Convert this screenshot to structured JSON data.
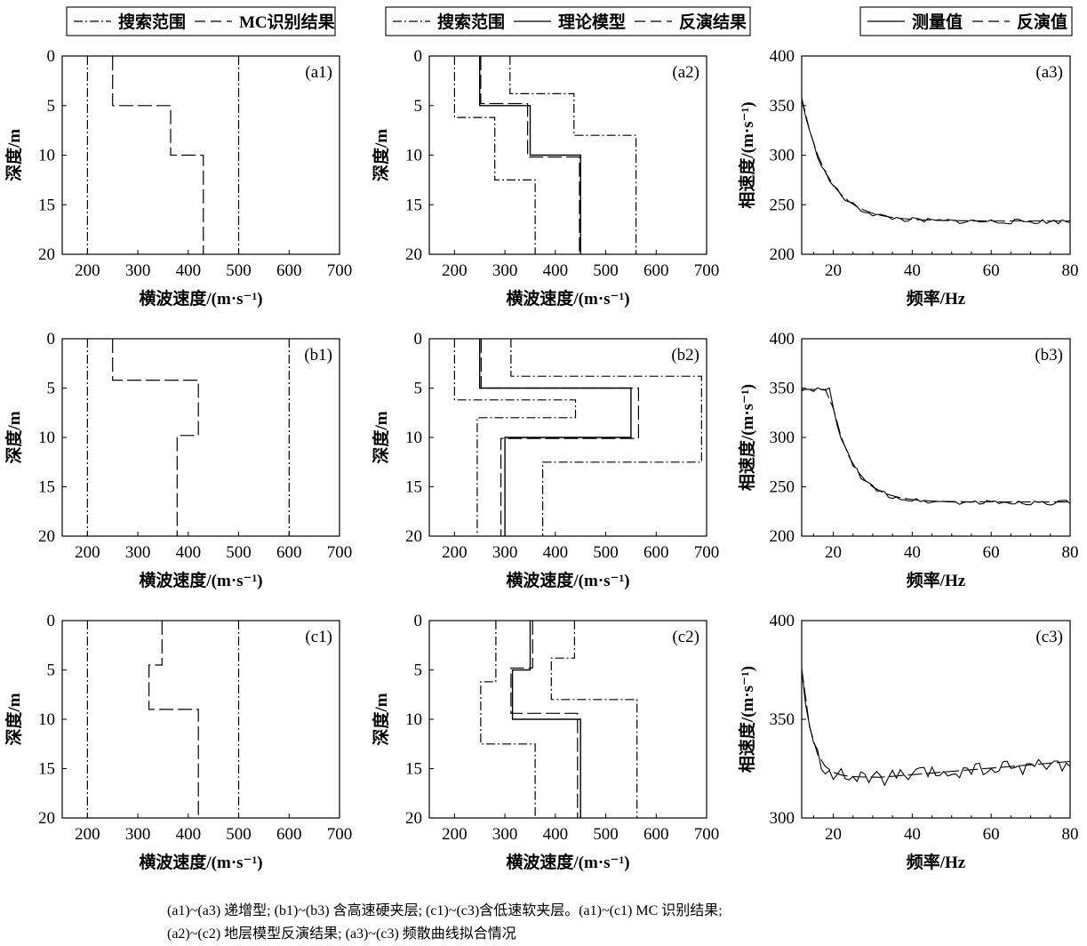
{
  "chart_data": [
    {
      "id": "a1",
      "type": "line",
      "panel_label": "(a1)",
      "xlabel": "横波速度/(m·s⁻¹)",
      "ylabel": "深度/m",
      "xlim": [
        150,
        700
      ],
      "ylim": [
        20,
        0
      ],
      "y_inverted": true,
      "xticks": [
        "200",
        "300",
        "400",
        "500",
        "600",
        "700"
      ],
      "yticks": [
        "0",
        "5",
        "10",
        "15",
        "20"
      ],
      "legend": [
        "搜索范围",
        "MC识别结果"
      ],
      "series": [
        {
          "name": "搜索范围",
          "style": "dashdot",
          "x": [
            200,
            200
          ],
          "y": [
            0,
            20
          ]
        },
        {
          "name": "搜索范围",
          "style": "dashdot",
          "x": [
            500,
            500
          ],
          "y": [
            0,
            20
          ]
        },
        {
          "name": "MC识别结果",
          "style": "dashed",
          "x": [
            250,
            250,
            365,
            365,
            430,
            430
          ],
          "y": [
            0,
            5,
            5,
            10,
            10,
            20
          ]
        }
      ]
    },
    {
      "id": "a2",
      "type": "line",
      "panel_label": "(a2)",
      "xlabel": "横波速度/(m·s⁻¹)",
      "ylabel": "深度/m",
      "xlim": [
        150,
        700
      ],
      "ylim": [
        20,
        0
      ],
      "y_inverted": true,
      "xticks": [
        "200",
        "300",
        "400",
        "500",
        "600",
        "700"
      ],
      "yticks": [
        "0",
        "5",
        "10",
        "15",
        "20"
      ],
      "legend": [
        "搜索范围",
        "理论模型",
        "反演结果"
      ],
      "series": [
        {
          "name": "搜索范围",
          "style": "dashdot",
          "x": [
            200,
            200,
            280,
            280,
            360,
            360
          ],
          "y": [
            0,
            6.2,
            6.2,
            12.5,
            12.5,
            20
          ]
        },
        {
          "name": "搜索范围",
          "style": "dashdot",
          "x": [
            310,
            310,
            437,
            437,
            560,
            560
          ],
          "y": [
            0,
            3.8,
            3.8,
            8,
            8,
            20
          ]
        },
        {
          "name": "理论模型",
          "style": "solid",
          "x": [
            250,
            250,
            350,
            350,
            450,
            450
          ],
          "y": [
            0,
            5,
            5,
            10,
            10,
            20
          ]
        },
        {
          "name": "反演结果",
          "style": "dashed",
          "x": [
            252,
            252,
            345,
            345,
            448,
            448
          ],
          "y": [
            0,
            4.8,
            4.8,
            10.2,
            10.2,
            20
          ]
        }
      ]
    },
    {
      "id": "a3",
      "type": "line",
      "panel_label": "(a3)",
      "xlabel": "频率/Hz",
      "ylabel": "相速度/(m·s⁻¹)",
      "xlim": [
        12,
        80
      ],
      "ylim": [
        200,
        400
      ],
      "xticks": [
        "20",
        "40",
        "60",
        "80"
      ],
      "yticks": [
        "200",
        "250",
        "300",
        "350",
        "400"
      ],
      "legend": [
        "测量值",
        "反演值"
      ],
      "curve": {
        "start": 357,
        "end": 233,
        "tau": 6.5,
        "start_freq": 12,
        "ripple": 2.5
      },
      "series": [
        {
          "name": "测量值",
          "style": "solid",
          "x": [
            12,
            15,
            20,
            25,
            30,
            40,
            50,
            60,
            70,
            80
          ],
          "y": [
            357,
            325,
            284,
            259,
            247,
            237,
            235,
            233,
            233,
            233
          ]
        },
        {
          "name": "反演值",
          "style": "dashed",
          "x": [
            12,
            15,
            20,
            25,
            30,
            40,
            50,
            60,
            70,
            80
          ],
          "y": [
            357,
            325,
            284,
            259,
            247,
            237,
            235,
            233,
            233,
            233
          ]
        }
      ]
    },
    {
      "id": "b1",
      "type": "line",
      "panel_label": "(b1)",
      "xlabel": "横波速度/(m·s⁻¹)",
      "ylabel": "深度/m",
      "xlim": [
        150,
        700
      ],
      "ylim": [
        20,
        0
      ],
      "y_inverted": true,
      "xticks": [
        "200",
        "300",
        "400",
        "500",
        "600",
        "700"
      ],
      "yticks": [
        "0",
        "5",
        "10",
        "15",
        "20"
      ],
      "series": [
        {
          "name": "搜索范围",
          "style": "dashdot",
          "x": [
            200,
            200
          ],
          "y": [
            0,
            20
          ]
        },
        {
          "name": "搜索范围",
          "style": "dashdot",
          "x": [
            600,
            600
          ],
          "y": [
            0,
            20
          ]
        },
        {
          "name": "MC识别结果",
          "style": "dashed",
          "x": [
            250,
            250,
            420,
            420,
            378,
            378
          ],
          "y": [
            0,
            4.2,
            4.2,
            9.8,
            9.8,
            20
          ]
        }
      ]
    },
    {
      "id": "b2",
      "type": "line",
      "panel_label": "(b2)",
      "xlabel": "横波速度/(m·s⁻¹)",
      "ylabel": "深度/m",
      "xlim": [
        150,
        700
      ],
      "ylim": [
        20,
        0
      ],
      "y_inverted": true,
      "xticks": [
        "200",
        "300",
        "400",
        "500",
        "600",
        "700"
      ],
      "yticks": [
        "0",
        "5",
        "10",
        "15",
        "20"
      ],
      "series": [
        {
          "name": "搜索范围",
          "style": "dashdot",
          "x": [
            200,
            200,
            440,
            440,
            245,
            245
          ],
          "y": [
            0,
            6.2,
            6.2,
            8,
            8,
            20
          ]
        },
        {
          "name": "搜索范围",
          "style": "dashdot",
          "x": [
            312,
            312,
            690,
            690,
            375,
            375
          ],
          "y": [
            0,
            3.8,
            3.8,
            12.5,
            12.5,
            20
          ]
        },
        {
          "name": "理论模型",
          "style": "solid",
          "x": [
            250,
            250,
            550,
            550,
            300,
            300
          ],
          "y": [
            0,
            5,
            5,
            10,
            10,
            20
          ]
        },
        {
          "name": "反演结果",
          "style": "dashed",
          "x": [
            253,
            253,
            565,
            565,
            292,
            292
          ],
          "y": [
            0,
            5,
            5,
            10.1,
            10.1,
            20
          ]
        }
      ]
    },
    {
      "id": "b3",
      "type": "line",
      "panel_label": "(b3)",
      "xlabel": "频率/Hz",
      "ylabel": "相速度/(m·s⁻¹)",
      "xlim": [
        12,
        80
      ],
      "ylim": [
        200,
        400
      ],
      "xticks": [
        "20",
        "40",
        "60",
        "80"
      ],
      "yticks": [
        "200",
        "250",
        "300",
        "350",
        "400"
      ],
      "curve": {
        "plateau": 348,
        "plateau_end": 19,
        "end": 234,
        "tau": 5.5,
        "ripple": 2.5
      },
      "series": [
        {
          "name": "测量值",
          "style": "solid",
          "x": [
            12,
            16,
            19,
            22,
            25,
            30,
            35,
            40,
            60,
            80
          ],
          "y": [
            348,
            349,
            348,
            320,
            290,
            258,
            246,
            238,
            235,
            234
          ]
        },
        {
          "name": "反演值",
          "style": "dashed",
          "x": [
            12,
            16,
            19,
            22,
            25,
            30,
            35,
            40,
            60,
            80
          ],
          "y": [
            346,
            347,
            346,
            322,
            292,
            259,
            245,
            238,
            235,
            234
          ]
        }
      ]
    },
    {
      "id": "c1",
      "type": "line",
      "panel_label": "(c1)",
      "xlabel": "横波速度/(m·s⁻¹)",
      "ylabel": "深度/m",
      "xlim": [
        150,
        700
      ],
      "ylim": [
        20,
        0
      ],
      "y_inverted": true,
      "xticks": [
        "200",
        "300",
        "400",
        "500",
        "600",
        "700"
      ],
      "yticks": [
        "0",
        "5",
        "10",
        "15",
        "20"
      ],
      "series": [
        {
          "name": "搜索范围",
          "style": "dashdot",
          "x": [
            200,
            200
          ],
          "y": [
            0,
            20
          ]
        },
        {
          "name": "搜索范围",
          "style": "dashdot",
          "x": [
            500,
            500
          ],
          "y": [
            0,
            20
          ]
        },
        {
          "name": "MC识别结果",
          "style": "dashed",
          "x": [
            348,
            348,
            322,
            322,
            420,
            420
          ],
          "y": [
            0,
            4.5,
            4.5,
            9,
            9,
            20
          ]
        }
      ]
    },
    {
      "id": "c2",
      "type": "line",
      "panel_label": "(c2)",
      "xlabel": "横波速度/(m·s⁻¹)",
      "ylabel": "深度/m",
      "xlim": [
        150,
        700
      ],
      "ylim": [
        20,
        0
      ],
      "y_inverted": true,
      "xticks": [
        "200",
        "300",
        "400",
        "500",
        "600",
        "700"
      ],
      "yticks": [
        "0",
        "5",
        "10",
        "15",
        "20"
      ],
      "series": [
        {
          "name": "搜索范围",
          "style": "dashdot",
          "x": [
            282,
            282,
            252,
            252,
            360,
            360
          ],
          "y": [
            0,
            6.2,
            6.2,
            12.5,
            12.5,
            20
          ]
        },
        {
          "name": "搜索范围",
          "style": "dashdot",
          "x": [
            438,
            438,
            392,
            392,
            562,
            562
          ],
          "y": [
            0,
            3.8,
            3.8,
            8,
            8,
            20
          ]
        },
        {
          "name": "理论模型",
          "style": "solid",
          "x": [
            350,
            350,
            315,
            315,
            450,
            450
          ],
          "y": [
            0,
            5,
            5,
            10,
            10,
            20
          ]
        },
        {
          "name": "反演结果",
          "style": "dashed",
          "x": [
            355,
            355,
            312,
            312,
            444,
            444
          ],
          "y": [
            0,
            4.8,
            4.8,
            9.4,
            9.4,
            20
          ]
        }
      ]
    },
    {
      "id": "c3",
      "type": "line",
      "panel_label": "(c3)",
      "xlabel": "频率/Hz",
      "ylabel": "相速度/(m·s⁻¹)",
      "xlim": [
        12,
        80
      ],
      "ylim": [
        300,
        400
      ],
      "xticks": [
        "20",
        "40",
        "60",
        "80"
      ],
      "yticks": [
        "300",
        "350",
        "400"
      ],
      "curve": {
        "start": 375,
        "base": 320,
        "tau": 2.6,
        "min_freq": 32,
        "end": 328,
        "ripple": 4
      },
      "series": [
        {
          "name": "测量值",
          "style": "solid",
          "x": [
            12,
            14,
            16,
            18,
            22,
            30,
            40,
            50,
            60,
            70,
            80
          ],
          "y": [
            375,
            356,
            340,
            330,
            324,
            320,
            320,
            323,
            325,
            327,
            328
          ]
        },
        {
          "name": "反演值",
          "style": "dashed",
          "x": [
            12,
            14,
            16,
            18,
            22,
            30,
            40,
            50,
            60,
            70,
            80
          ],
          "y": [
            374,
            357,
            341,
            331,
            325,
            321,
            321,
            323,
            325,
            327,
            328
          ]
        }
      ]
    }
  ],
  "caption": {
    "line1": "(a1)~(a3)  递增型; (b1)~(b3)  含高速硬夹层; (c1)~(c3)含低速软夹层。(a1)~(c1) MC 识别结果;",
    "line2": "(a2)~(c2)  地层模型反演结果; (a3)~(c3)  频散曲线拟合情况"
  }
}
